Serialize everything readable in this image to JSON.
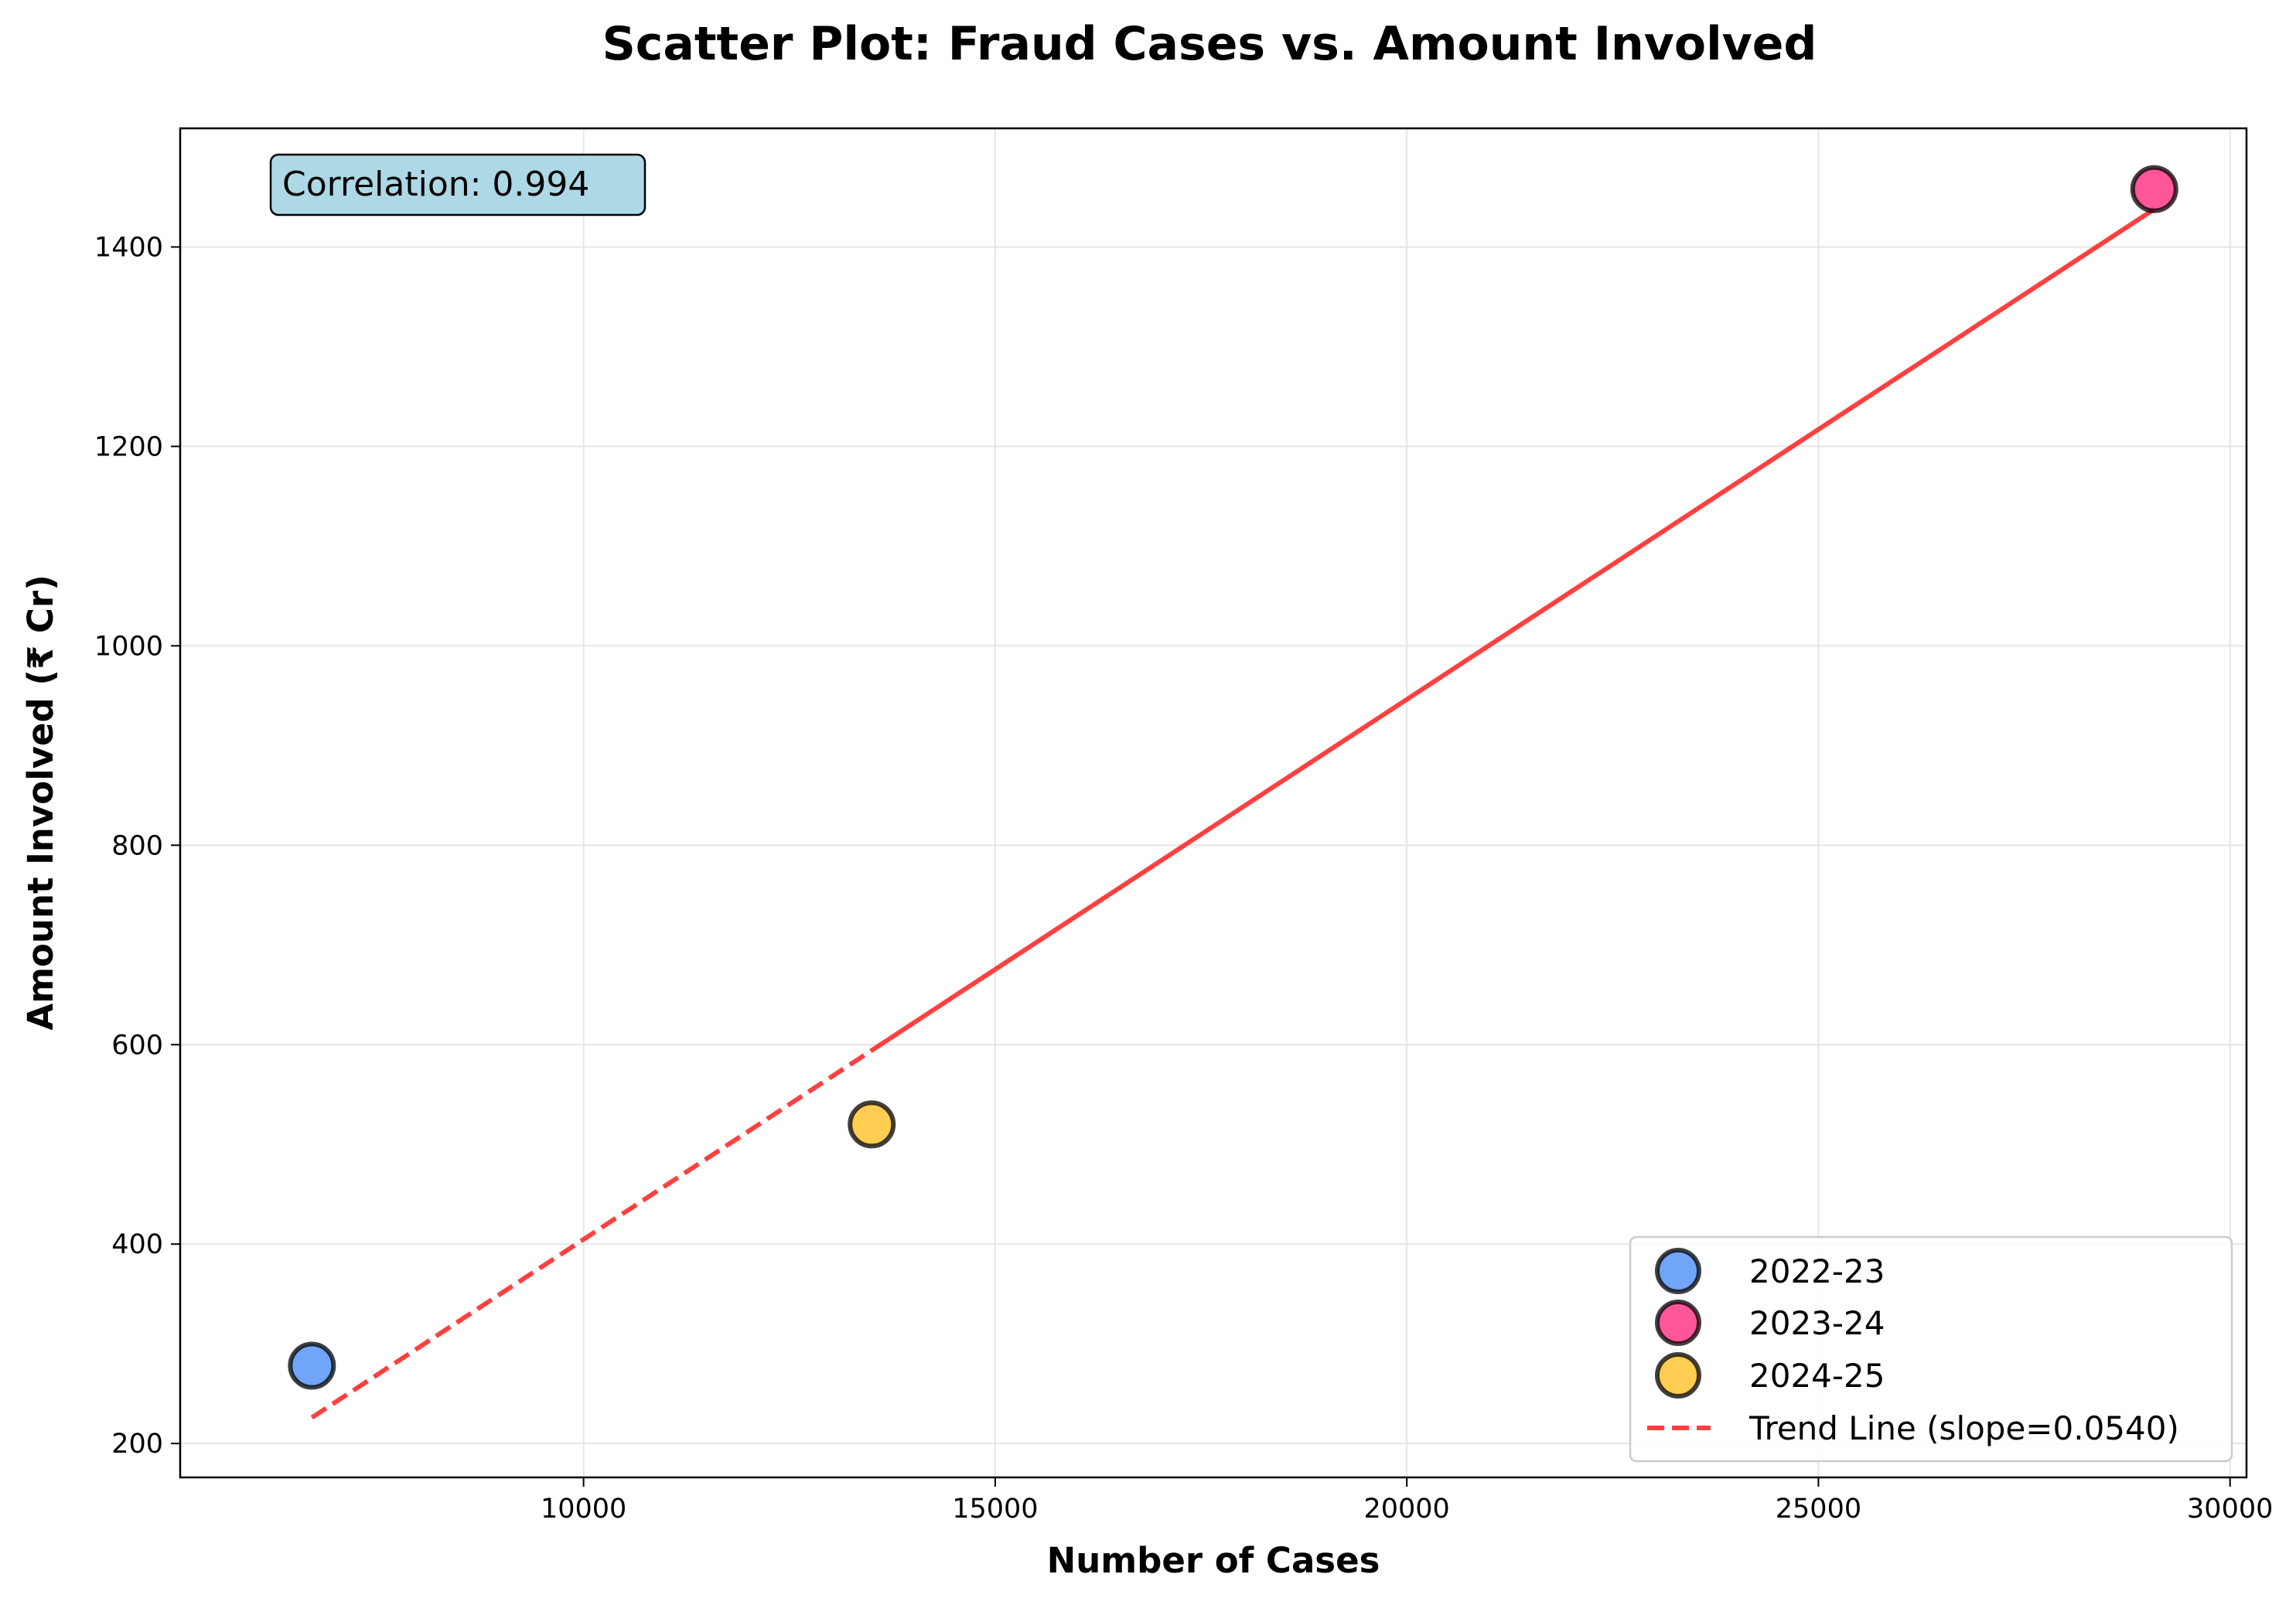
{
  "chart_data": {
    "type": "scatter",
    "title": "Scatter Plot: Fraud Cases vs. Amount Involved",
    "xlabel": "Number of Cases",
    "ylabel": "Amount Involved (₹ Cr)",
    "xlim": [
      5100,
      30200
    ],
    "ylim": [
      166,
      1519
    ],
    "xticks": [
      10000,
      15000,
      20000,
      25000,
      30000
    ],
    "yticks": [
      200,
      400,
      600,
      800,
      1000,
      1200,
      1400
    ],
    "grid": true,
    "legend_position": "lower-right",
    "series": [
      {
        "name": "2022-23",
        "x": [
          6700
        ],
        "y": [
          278
        ],
        "color": "#4d8ff5"
      },
      {
        "name": "2023-24",
        "x": [
          29080
        ],
        "y": [
          1458
        ],
        "color": "#ff2a7f"
      },
      {
        "name": "2024-25",
        "x": [
          13500
        ],
        "y": [
          520
        ],
        "color": "#ffc125"
      }
    ],
    "trend_line": {
      "name": "Trend Line (slope=0.0540)",
      "slope": 0.054,
      "x": [
        6700,
        29080
      ],
      "y": [
        226,
        1438
      ],
      "color": "#ff1f1f",
      "style": "dashed"
    },
    "annotation": {
      "text": "Correlation: 0.994",
      "position": "top-left",
      "background": "#add8e6"
    }
  }
}
